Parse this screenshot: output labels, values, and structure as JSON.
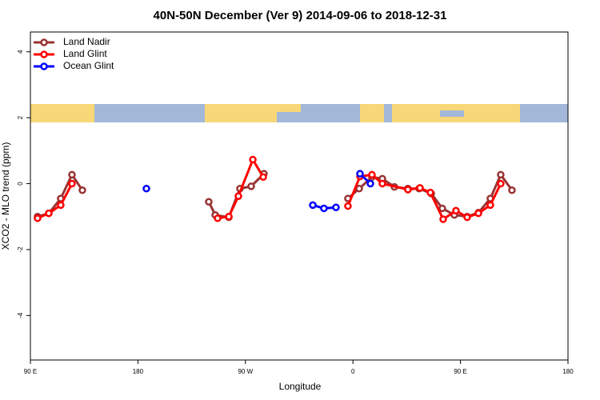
{
  "chart_data": {
    "type": "line",
    "title": "40N-50N December (Ver 9)   2014-09-06 to 2018-12-31",
    "xlabel": "Longitude",
    "ylabel": "XCO2 - MLO trend (ppm)",
    "xlim": [
      90,
      540
    ],
    "ylim": [
      -5.35,
      4.6
    ],
    "xticks": [
      {
        "value": 90,
        "label": "90 E"
      },
      180,
      {
        "value": 270,
        "label": "90 W"
      },
      {
        "value": 360,
        "label": "0"
      },
      {
        "value": 450,
        "label": "90 E"
      },
      {
        "value": 540,
        "label": "180"
      }
    ],
    "yticks": [
      -4,
      -2,
      0,
      2,
      4
    ],
    "legend": "top-left",
    "series": [
      {
        "name": "Land Nadir",
        "color": "#993333",
        "x": [
          96.0,
          105.4,
          115.4,
          124.8,
          133.5,
          null,
          239.3,
          244.7,
          256.1,
          265.4,
          274.8,
          285.5,
          null,
          355.8,
          365.2,
          375.9,
          384.6,
          394.7,
          406.0,
          415.4,
          425.5,
          434.8,
          444.9,
          455.6,
          465.0,
          475.0,
          483.7,
          493.1
        ],
        "values": [
          -1.0,
          -0.9,
          -0.45,
          0.27,
          -0.2,
          null,
          -0.55,
          -0.95,
          -1.02,
          -0.15,
          -0.08,
          0.3,
          null,
          -0.45,
          -0.15,
          0.2,
          0.15,
          -0.1,
          -0.15,
          -0.15,
          -0.3,
          -0.75,
          -0.95,
          -1.0,
          -0.88,
          -0.45,
          0.27,
          -0.2
        ]
      },
      {
        "name": "Land Glint",
        "color": "#ff0000",
        "x": [
          96.0,
          105.4,
          115.4,
          124.8,
          null,
          246.7,
          256.1,
          264.1,
          276.2,
          284.9,
          null,
          355.8,
          365.9,
          375.9,
          384.6,
          406.0,
          416.1,
          424.8,
          435.5,
          446.2,
          455.6,
          465.0,
          475.0,
          483.7
        ],
        "values": [
          -1.05,
          -0.9,
          -0.65,
          0.0,
          null,
          -1.05,
          -1.0,
          -0.38,
          0.73,
          0.2,
          null,
          -0.68,
          0.22,
          0.27,
          0.0,
          -0.18,
          -0.13,
          -0.27,
          -1.08,
          -0.82,
          -1.02,
          -0.9,
          -0.65,
          0.0
        ]
      },
      {
        "name": "Ocean Glint",
        "color": "#0000ff",
        "x": [
          187.1,
          null,
          326.4,
          335.7,
          345.8,
          null,
          365.9,
          374.6
        ],
        "values": [
          -0.15,
          null,
          -0.65,
          -0.75,
          -0.72,
          null,
          0.3,
          0.0
        ]
      }
    ]
  }
}
